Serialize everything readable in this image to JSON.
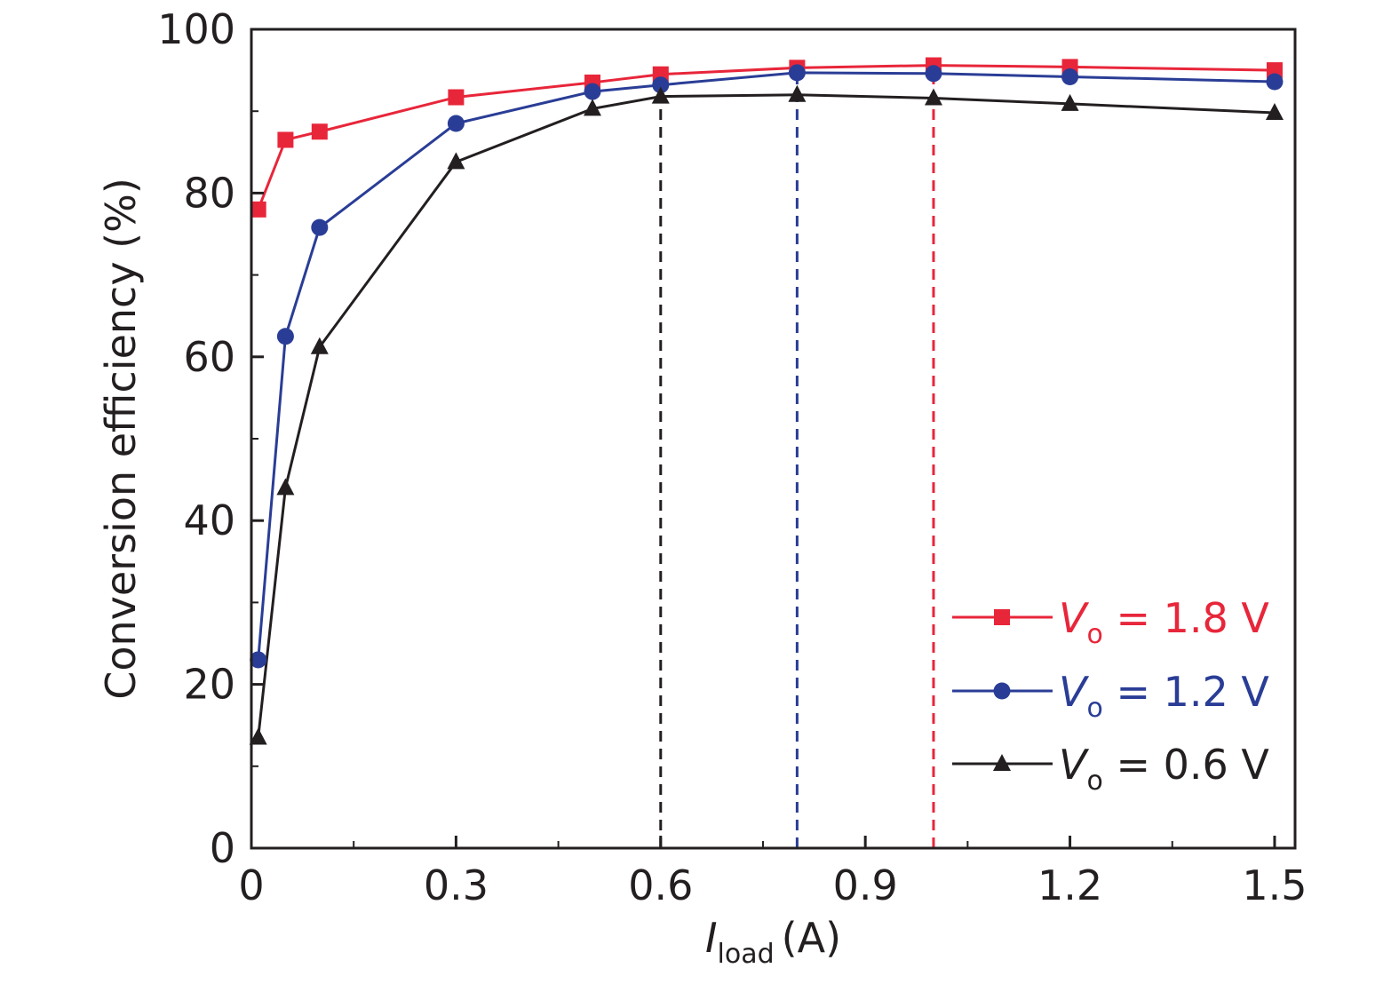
{
  "chart_data": {
    "type": "line",
    "xlabel": {
      "main": "I",
      "sub": "load",
      "unit": "(A)"
    },
    "ylabel": "Conversion efficiency (%)",
    "xlim": [
      0,
      1.53
    ],
    "ylim": [
      0,
      100
    ],
    "xticks": [
      0,
      0.3,
      0.6,
      0.9,
      1.2,
      1.5
    ],
    "xtick_labels": [
      "0",
      "0.3",
      "0.6",
      "0.9",
      "1.2",
      "1.5"
    ],
    "yticks": [
      0,
      20,
      40,
      60,
      80,
      100
    ],
    "ytick_labels": [
      "0",
      "20",
      "40",
      "60",
      "80",
      "100"
    ],
    "grid": false,
    "legend_position": "bottom-right",
    "series": [
      {
        "name": "Vo = 1.8 V",
        "legend": {
          "v": "V",
          "sub": "o",
          "rest": " = 1.8 V"
        },
        "color": "#e8263a",
        "marker": "square",
        "x": [
          0.01,
          0.05,
          0.1,
          0.3,
          0.5,
          0.6,
          0.8,
          1.0,
          1.2,
          1.5
        ],
        "y": [
          78,
          86.5,
          87.5,
          91.7,
          93.5,
          94.5,
          95.3,
          95.6,
          95.4,
          95
        ]
      },
      {
        "name": "Vo = 1.2 V",
        "legend": {
          "v": "V",
          "sub": "o",
          "rest": " = 1.2 V"
        },
        "color": "#2a3d96",
        "marker": "circle",
        "x": [
          0.01,
          0.05,
          0.1,
          0.3,
          0.5,
          0.6,
          0.8,
          1.0,
          1.2,
          1.5
        ],
        "y": [
          23,
          62.5,
          75.8,
          88.5,
          92.4,
          93.2,
          94.7,
          94.6,
          94.2,
          93.6
        ]
      },
      {
        "name": "Vo = 0.6 V",
        "legend": {
          "v": "V",
          "sub": "o",
          "rest": " = 0.6 V"
        },
        "color": "#231f20",
        "marker": "triangle",
        "x": [
          0.01,
          0.05,
          0.1,
          0.3,
          0.5,
          0.6,
          0.8,
          1.0,
          1.2,
          1.5
        ],
        "y": [
          13.5,
          44,
          61.2,
          83.8,
          90.3,
          91.8,
          92,
          91.6,
          90.9,
          89.8
        ]
      }
    ],
    "reference_lines": [
      {
        "x": 0.6,
        "color": "#231f20",
        "style": "dashed"
      },
      {
        "x": 0.8,
        "color": "#2a3d96",
        "style": "dashed"
      },
      {
        "x": 1.0,
        "color": "#e8263a",
        "style": "dashed"
      }
    ]
  }
}
